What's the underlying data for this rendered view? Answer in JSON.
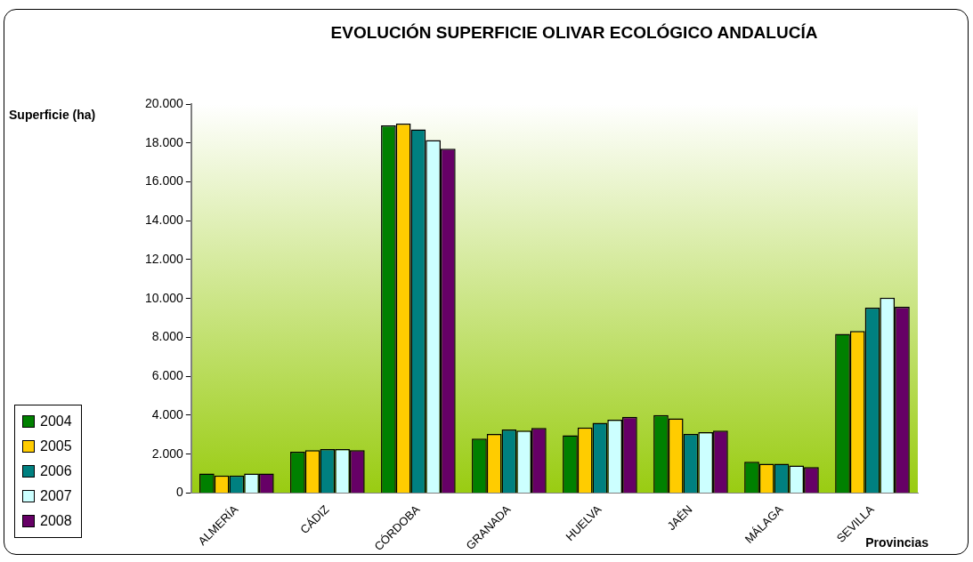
{
  "chart_data": {
    "type": "bar",
    "title": "EVOLUCIÓN SUPERFICIE OLIVAR ECOLÓGICO ANDALUCÍA",
    "xlabel": "Provincias",
    "ylabel": "Superficie (ha)",
    "categories": [
      "ALMERÍA",
      "CÁDIZ",
      "CÓRDOBA",
      "GRANADA",
      "HUELVA",
      "JAÉN",
      "MÁLAGA",
      "SEVILLA"
    ],
    "series": [
      {
        "name": "2004",
        "color": "#008000",
        "values": [
          1000,
          2130,
          18900,
          2800,
          2970,
          4010,
          1610,
          8180
        ]
      },
      {
        "name": "2005",
        "color": "#ffcc00",
        "values": [
          900,
          2200,
          19000,
          3040,
          3370,
          3840,
          1510,
          8330
        ]
      },
      {
        "name": "2006",
        "color": "#008080",
        "values": [
          900,
          2260,
          18700,
          3270,
          3610,
          3040,
          1510,
          9530
        ]
      },
      {
        "name": "2007",
        "color": "#ccffff",
        "values": [
          1000,
          2260,
          18150,
          3210,
          3770,
          3130,
          1420,
          10050
        ]
      },
      {
        "name": "2008",
        "color": "#660066",
        "values": [
          1000,
          2200,
          17700,
          3350,
          3920,
          3210,
          1340,
          9580
        ]
      }
    ],
    "ylim": [
      0,
      20000
    ],
    "yticks": [
      {
        "value": 0,
        "label": "0"
      },
      {
        "value": 2000,
        "label": "2.000"
      },
      {
        "value": 4000,
        "label": "4.000"
      },
      {
        "value": 6000,
        "label": "6.000"
      },
      {
        "value": 8000,
        "label": "8.000"
      },
      {
        "value": 10000,
        "label": "10.000"
      },
      {
        "value": 12000,
        "label": "12.000"
      },
      {
        "value": 14000,
        "label": "14.000"
      },
      {
        "value": 16000,
        "label": "16.000"
      },
      {
        "value": 18000,
        "label": "18.000"
      },
      {
        "value": 20000,
        "label": "20.000"
      }
    ],
    "grid": false,
    "legend": "bottom left"
  }
}
